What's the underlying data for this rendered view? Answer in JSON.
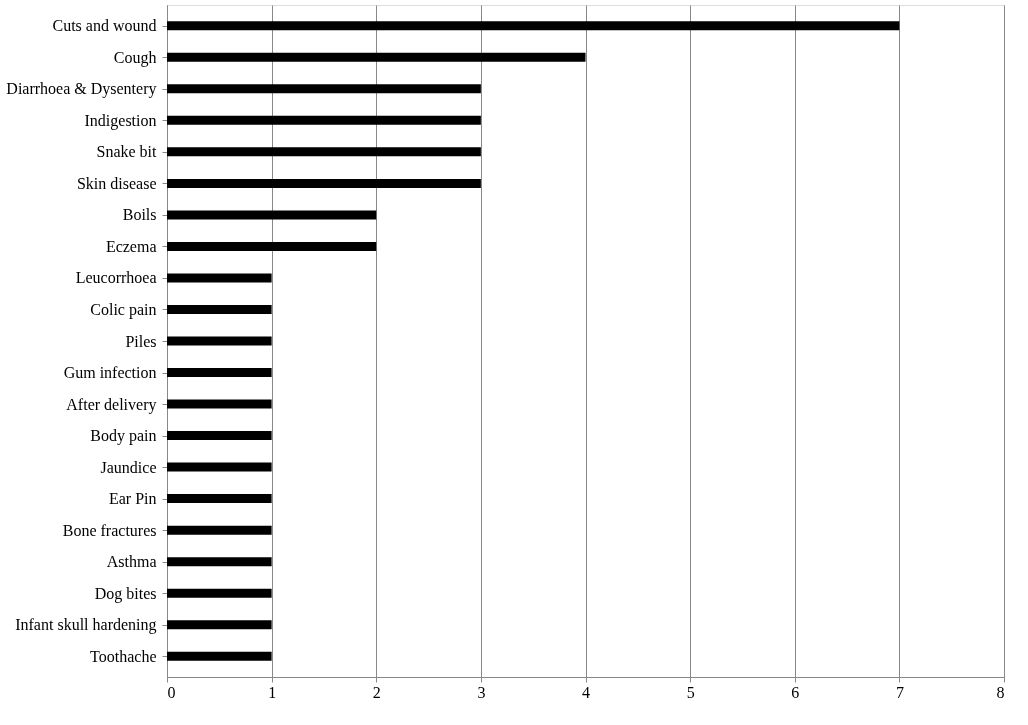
{
  "chart_data": {
    "type": "bar",
    "orientation": "horizontal",
    "categories": [
      "Cuts and wound",
      "Cough",
      "Diarrhoea & Dysentery",
      "Indigestion",
      "Snake bit",
      "Skin disease",
      "Boils",
      "Eczema",
      "Leucorrhoea",
      "Colic pain",
      "Piles",
      "Gum infection",
      "After delivery",
      "Body pain",
      "Jaundice",
      "Ear Pin",
      "Bone fractures",
      "Asthma",
      "Dog bites",
      "Infant skull hardening",
      "Toothache"
    ],
    "values": [
      7,
      4,
      3,
      3,
      3,
      3,
      2,
      2,
      1,
      1,
      1,
      1,
      1,
      1,
      1,
      1,
      1,
      1,
      1,
      1,
      1
    ],
    "color": "#000000",
    "xlim": [
      0,
      8
    ],
    "xticks": [
      0,
      1,
      2,
      3,
      4,
      5,
      6,
      7,
      8
    ],
    "grid": "x"
  }
}
